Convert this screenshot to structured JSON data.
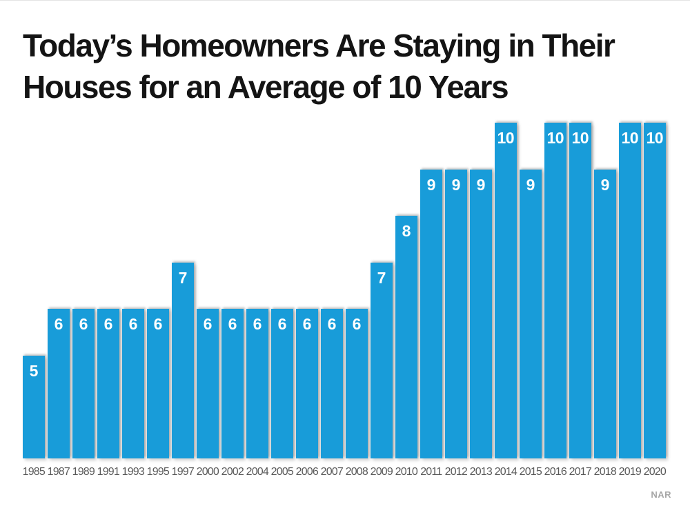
{
  "title": {
    "line1": "Today’s Homeowners Are Staying in Their",
    "line2": "Houses for an Average of 10 Years"
  },
  "source_label": "NAR",
  "colors": {
    "bar": "#189CD9",
    "bar_label": "#FFFFFF",
    "title_text": "#141414",
    "axis_label": "#595959",
    "source_text": "#A6A6A6"
  },
  "chart_data": {
    "type": "bar",
    "title": "Today’s Homeowners Are Staying in Their Houses for an Average of 10 Years",
    "categories": [
      "1985",
      "1987",
      "1989",
      "1991",
      "1993",
      "1995",
      "1997",
      "2000",
      "2002",
      "2004",
      "2005",
      "2006",
      "2007",
      "2008",
      "2009",
      "2010",
      "2011",
      "2012",
      "2013",
      "2014",
      "2015",
      "2016",
      "2017",
      "2018",
      "2019",
      "2020"
    ],
    "values": [
      5,
      6,
      6,
      6,
      6,
      6,
      7,
      6,
      6,
      6,
      6,
      6,
      6,
      6,
      7,
      8,
      9,
      9,
      9,
      10,
      9,
      10,
      10,
      9,
      10,
      10
    ],
    "xlabel": "",
    "ylabel": "",
    "unit": "years",
    "data_labels_position": "inside-top",
    "legend": "none",
    "grid": false,
    "axis_lines": false,
    "source": "NAR"
  }
}
